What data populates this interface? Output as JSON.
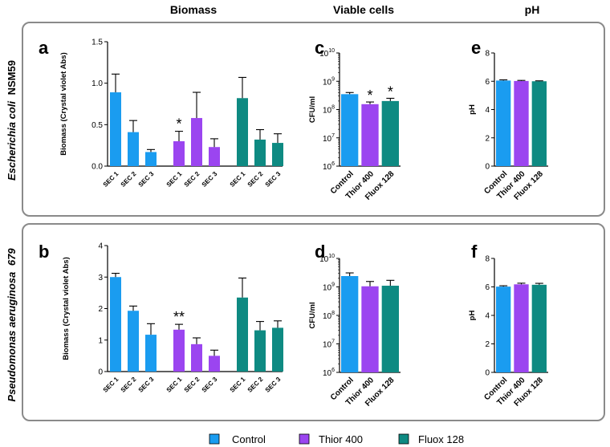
{
  "headers": {
    "biomass": "Biomass",
    "viable": "Viable cells",
    "ph": "pH"
  },
  "rows": [
    {
      "organism": "Escherichia coli",
      "strain": "NSM59"
    },
    {
      "organism": "Pseudomonas aeruginosa",
      "strain": "679"
    }
  ],
  "legend": [
    {
      "label": "Control",
      "color": "#1a9cf0"
    },
    {
      "label": "Thior 400",
      "color": "#9b45f0"
    },
    {
      "label": "Fluox 128",
      "color": "#0e8a82"
    }
  ],
  "chart_data": [
    {
      "panel": "a",
      "type": "bar",
      "ylabel": "Biomass (Crystal violet Abs)",
      "ylim": [
        0,
        1.5
      ],
      "yticks": [
        "0.0",
        "0.5",
        "1.0",
        "1.5"
      ],
      "ytick_values": [
        0,
        0.5,
        1.0,
        1.5
      ],
      "categories": [
        "SEC 1",
        "SEC 2",
        "SEC 3"
      ],
      "series": [
        {
          "name": "Control",
          "values": [
            0.89,
            0.41,
            0.17
          ],
          "errors": [
            0.22,
            0.14,
            0.03
          ]
        },
        {
          "name": "Thior 400",
          "values": [
            0.3,
            0.58,
            0.23
          ],
          "errors": [
            0.12,
            0.31,
            0.1
          ]
        },
        {
          "name": "Fluox 128",
          "values": [
            0.82,
            0.32,
            0.28
          ],
          "errors": [
            0.25,
            0.12,
            0.11
          ]
        }
      ],
      "annotations": [
        {
          "series": "Thior 400",
          "category": "SEC 1",
          "text": "*"
        }
      ]
    },
    {
      "panel": "b",
      "type": "bar",
      "ylabel": "Biomass (Crystal violet Abs)",
      "ylim": [
        0,
        4
      ],
      "yticks": [
        "0",
        "1",
        "2",
        "3",
        "4"
      ],
      "ytick_values": [
        0,
        1,
        2,
        3,
        4
      ],
      "categories": [
        "SEC 1",
        "SEC 2",
        "SEC 3"
      ],
      "series": [
        {
          "name": "Control",
          "values": [
            3.0,
            1.93,
            1.17
          ],
          "errors": [
            0.12,
            0.15,
            0.35
          ]
        },
        {
          "name": "Thior 400",
          "values": [
            1.33,
            0.87,
            0.5
          ],
          "errors": [
            0.17,
            0.2,
            0.18
          ]
        },
        {
          "name": "Fluox 128",
          "values": [
            2.35,
            1.31,
            1.39
          ],
          "errors": [
            0.62,
            0.28,
            0.22
          ]
        }
      ],
      "annotations": [
        {
          "series": "Thior 400",
          "category": "SEC 1",
          "text": "**"
        }
      ]
    },
    {
      "panel": "c",
      "type": "bar",
      "yscale": "log",
      "ylabel": "CFU/ml",
      "ylim": [
        1000000,
        10000000000
      ],
      "ytick_exponents": [
        "6",
        "7",
        "8",
        "9",
        "10"
      ],
      "ytick_base": "10",
      "categories": [
        "Control",
        "Thior 400",
        "Fluox 128"
      ],
      "values": [
        350000000,
        155000000,
        200000000
      ],
      "errors_upper": [
        400000000,
        185000000,
        250000000
      ],
      "annotations": [
        {
          "category": "Thior 400",
          "text": "*"
        },
        {
          "category": "Fluox 128",
          "text": "*"
        }
      ]
    },
    {
      "panel": "d",
      "type": "bar",
      "yscale": "log",
      "ylabel": "CFU/ml",
      "ylim": [
        1000000,
        10000000000
      ],
      "ytick_exponents": [
        "6",
        "7",
        "8",
        "9",
        "10"
      ],
      "ytick_base": "10",
      "categories": [
        "Control",
        "Thior 400",
        "Fluox 128"
      ],
      "values": [
        2400000000,
        1050000000,
        1100000000
      ],
      "errors_upper": [
        3100000000,
        1550000000,
        1700000000
      ],
      "annotations": []
    },
    {
      "panel": "e",
      "type": "bar",
      "ylabel": "pH",
      "ylim": [
        0,
        8
      ],
      "yticks": [
        "0",
        "2",
        "4",
        "6",
        "8"
      ],
      "ytick_values": [
        0,
        2,
        4,
        6,
        8
      ],
      "categories": [
        "Control",
        "Thior 400",
        "Fluox 128"
      ],
      "values": [
        6.05,
        6.02,
        6.0
      ],
      "errors": [
        0.05,
        0.04,
        0.03
      ],
      "annotations": []
    },
    {
      "panel": "f",
      "type": "bar",
      "ylabel": "pH",
      "ylim": [
        0,
        8
      ],
      "yticks": [
        "0",
        "2",
        "4",
        "6",
        "8"
      ],
      "ytick_values": [
        0,
        2,
        4,
        6,
        8
      ],
      "categories": [
        "Control",
        "Thior 400",
        "Fluox 128"
      ],
      "values": [
        6.02,
        6.18,
        6.15
      ],
      "errors": [
        0.06,
        0.08,
        0.1
      ],
      "annotations": []
    }
  ]
}
